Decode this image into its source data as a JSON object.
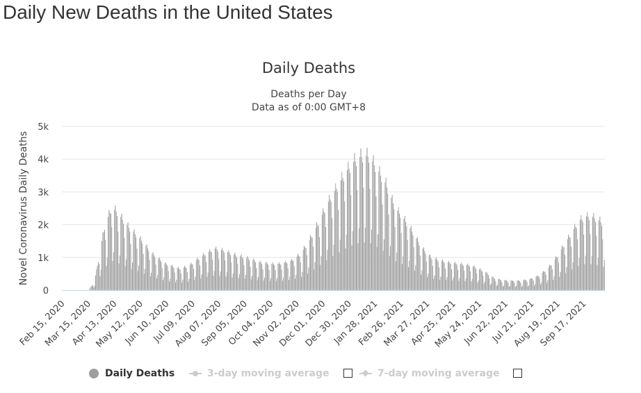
{
  "page": {
    "title": "Daily New Deaths in the United States"
  },
  "colors": {
    "bar": "#9e9e9e",
    "bar_stroke": "#ffffff",
    "grid": "#e6e6e6",
    "axis": "#ccd6eb",
    "text": "#333333",
    "tick_text": "#444444",
    "legend_inactive": "#cccccc"
  },
  "chart_data": {
    "type": "bar",
    "title": "Daily Deaths",
    "subtitle_lines": [
      "Deaths per Day",
      "Data as of 0:00 GMT+8"
    ],
    "ylabel": "Novel Coronavirus Daily Deaths",
    "xlabel": "",
    "ylim": [
      0,
      5000
    ],
    "y_ticks": [
      0,
      1000,
      2000,
      3000,
      4000,
      5000
    ],
    "y_tick_labels": [
      "0",
      "1k",
      "2k",
      "3k",
      "4k",
      "5k"
    ],
    "x_tick_labels": [
      "Feb 15, 2020",
      "Mar 15, 2020",
      "Apr 13, 2020",
      "May 12, 2020",
      "Jun 10, 2020",
      "Jul 09, 2020",
      "Aug 07, 2020",
      "Sep 05, 2020",
      "Oct 04, 2020",
      "Nov 02, 2020",
      "Dec 01, 2020",
      "Dec 30, 2020",
      "Jan 28, 2021",
      "Feb 26, 2021",
      "Mar 27, 2021",
      "Apr 25, 2021",
      "May 24, 2021",
      "Jun 22, 2021",
      "Jul 21, 2021",
      "Aug 19, 2021",
      "Sep 17, 2021"
    ],
    "start_date": "2020-02-15",
    "day_count": 604,
    "tick_interval_days": 29,
    "weekly_weekday_factors": [
      0.42,
      0.55,
      1.18,
      1.25,
      1.17,
      1.12,
      0.9
    ],
    "trend_anchors": [
      [
        0,
        0
      ],
      [
        26,
        0
      ],
      [
        30,
        15
      ],
      [
        36,
        250
      ],
      [
        41,
        900
      ],
      [
        47,
        1650
      ],
      [
        55,
        2150
      ],
      [
        60,
        2050
      ],
      [
        65,
        1900
      ],
      [
        75,
        1600
      ],
      [
        86,
        1350
      ],
      [
        100,
        950
      ],
      [
        115,
        680
      ],
      [
        130,
        560
      ],
      [
        140,
        620
      ],
      [
        148,
        760
      ],
      [
        160,
        960
      ],
      [
        170,
        1080
      ],
      [
        180,
        1030
      ],
      [
        190,
        930
      ],
      [
        205,
        840
      ],
      [
        220,
        720
      ],
      [
        235,
        680
      ],
      [
        245,
        700
      ],
      [
        255,
        770
      ],
      [
        265,
        940
      ],
      [
        275,
        1300
      ],
      [
        285,
        1750
      ],
      [
        295,
        2250
      ],
      [
        305,
        2650
      ],
      [
        315,
        3050
      ],
      [
        325,
        3350
      ],
      [
        333,
        3480
      ],
      [
        341,
        3480
      ],
      [
        350,
        3150
      ],
      [
        360,
        2750
      ],
      [
        370,
        2150
      ],
      [
        380,
        1850
      ],
      [
        390,
        1500
      ],
      [
        400,
        1100
      ],
      [
        410,
        850
      ],
      [
        420,
        770
      ],
      [
        430,
        720
      ],
      [
        440,
        690
      ],
      [
        455,
        640
      ],
      [
        470,
        480
      ],
      [
        480,
        320
      ],
      [
        490,
        260
      ],
      [
        500,
        250
      ],
      [
        510,
        250
      ],
      [
        520,
        290
      ],
      [
        530,
        380
      ],
      [
        540,
        560
      ],
      [
        550,
        860
      ],
      [
        560,
        1250
      ],
      [
        568,
        1550
      ],
      [
        575,
        1800
      ],
      [
        582,
        1920
      ],
      [
        590,
        1900
      ],
      [
        598,
        1800
      ],
      [
        603,
        1680
      ]
    ]
  },
  "legend": {
    "items": [
      {
        "label": "Daily Deaths",
        "active": true
      },
      {
        "label": "3-day moving average",
        "active": false
      },
      {
        "label": "7-day moving average",
        "active": false
      }
    ]
  }
}
